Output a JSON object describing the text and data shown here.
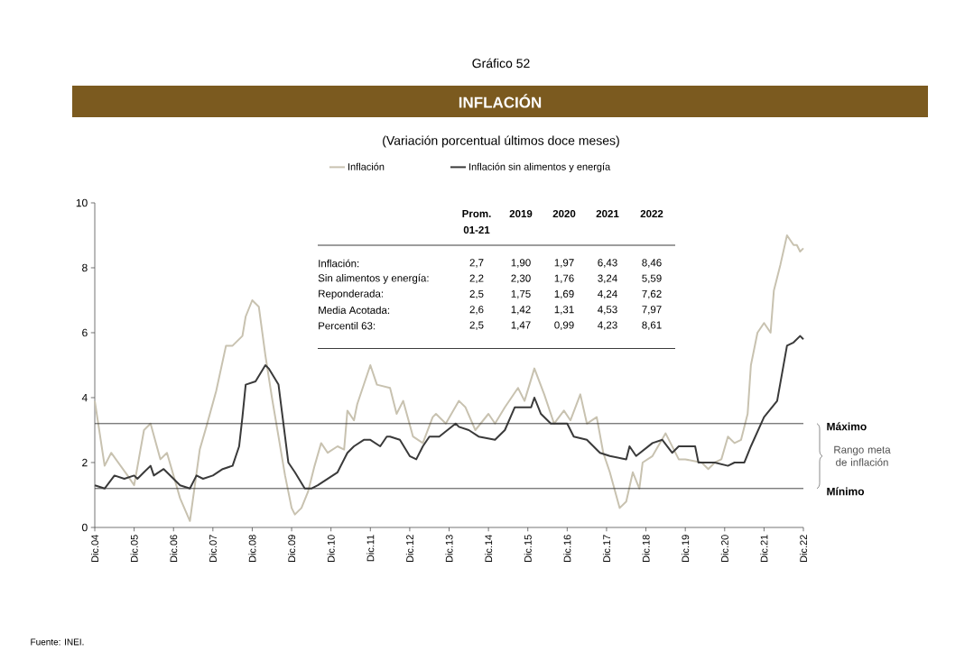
{
  "chart_data": {
    "type": "line",
    "title": "INFLACIÓN",
    "subtitle": "(Variación porcentual últimos doce meses)",
    "annotations": [
      "Gráfico 52",
      "Fuente: INEI.",
      "Rango meta de inflación",
      "Prom.",
      "2019",
      "2020",
      "2021",
      "2022",
      "01-21",
      "Inflación:",
      "2,7",
      "1,90",
      "1,97",
      "6,43",
      "8,46",
      "Sin alimentos y energía:",
      "2,2",
      "2,30",
      "1,76",
      "3,24",
      "5,59",
      "Reponderada:",
      "2,5",
      "1,75",
      "1,69",
      "4,24",
      "7,62",
      "Media Acotada:",
      "2,6",
      "1,42",
      "1,31",
      "4,53",
      "7,97",
      "Percentil 63:",
      "2,5",
      "1,47",
      "0,99",
      "4,23",
      "8,61"
    ],
    "legend": "top",
    "marker": "none",
    "line_style": "solid",
    "grid": false,
    "xlim": [
      "2004-12",
      "2022-12"
    ],
    "xticks": [
      {
        "value": "2004-12",
        "label": "Dic.04"
      },
      {
        "value": "2005-12",
        "label": "Dic.05"
      },
      {
        "value": "2006-12",
        "label": "Dic.06"
      },
      {
        "value": "2007-12",
        "label": "Dic.07"
      },
      {
        "value": "2008-12",
        "label": "Dic.08"
      },
      {
        "value": "2009-12",
        "label": "Dic.09"
      },
      {
        "value": "2010-12",
        "label": "Dic.10"
      },
      {
        "value": "2011-12",
        "label": "Dic.11"
      },
      {
        "value": "2012-12",
        "label": "Dic.12"
      },
      {
        "value": "2013-12",
        "label": "Dic.13"
      },
      {
        "value": "2014-12",
        "label": "Dic.14"
      },
      {
        "value": "2015-12",
        "label": "Dic.15"
      },
      {
        "value": "2016-12",
        "label": "Dic.16"
      },
      {
        "value": "2017-12",
        "label": "Dic.17"
      },
      {
        "value": "2018-12",
        "label": "Dic.18"
      },
      {
        "value": "2019-12",
        "label": "Dic.19"
      },
      {
        "value": "2020-12",
        "label": "Dic.20"
      },
      {
        "value": "2021-12",
        "label": "Dic.21"
      },
      {
        "value": "2022-12",
        "label": "Dic.22"
      }
    ],
    "ylim": [
      0,
      10
    ],
    "yticks": [
      0,
      2,
      4,
      6,
      8,
      10
    ],
    "ref_lines": [
      {
        "axis": "y",
        "value": 3.2,
        "label": "Máximo",
        "color": "#333333"
      },
      {
        "axis": "y",
        "value": 1.2,
        "label": "Mínimo",
        "color": "#333333"
      }
    ],
    "series": [
      {
        "name": "Inflación",
        "color": "#c8c2b0",
        "x": [
          "2004-12",
          "2005-03",
          "2005-05",
          "2005-10",
          "2005-12",
          "2006-03",
          "2006-05",
          "2006-08",
          "2006-10",
          "2006-12",
          "2007-02",
          "2007-05",
          "2007-08",
          "2007-10",
          "2008-01",
          "2008-04",
          "2008-06",
          "2008-09",
          "2008-10",
          "2008-12",
          "2009-02",
          "2009-04",
          "2009-06",
          "2009-08",
          "2009-10",
          "2009-12",
          "2010-01",
          "2010-03",
          "2010-05",
          "2010-07",
          "2010-09",
          "2010-11",
          "2011-02",
          "2011-04",
          "2011-05",
          "2011-07",
          "2011-08",
          "2011-12",
          "2012-02",
          "2012-06",
          "2012-08",
          "2012-10",
          "2013-01",
          "2013-04",
          "2013-07",
          "2013-08",
          "2013-11",
          "2014-03",
          "2014-05",
          "2014-08",
          "2014-12",
          "2015-02",
          "2015-05",
          "2015-09",
          "2015-11",
          "2016-02",
          "2016-05",
          "2016-08",
          "2016-11",
          "2017-01",
          "2017-04",
          "2017-06",
          "2017-09",
          "2017-11",
          "2018-01",
          "2018-04",
          "2018-06",
          "2018-08",
          "2018-10",
          "2018-11",
          "2019-02",
          "2019-06",
          "2019-10",
          "2019-12",
          "2020-05",
          "2020-07",
          "2020-09",
          "2020-11",
          "2021-01",
          "2021-03",
          "2021-05",
          "2021-07",
          "2021-08",
          "2021-10",
          "2021-12",
          "2022-02",
          "2022-03",
          "2022-05",
          "2022-07",
          "2022-09",
          "2022-10",
          "2022-11",
          "2022-12"
        ],
        "values": [
          3.9,
          1.9,
          2.3,
          1.6,
          1.3,
          3.0,
          3.2,
          2.1,
          2.3,
          1.6,
          0.9,
          0.2,
          2.4,
          3.1,
          4.2,
          5.6,
          5.6,
          5.9,
          6.5,
          7.0,
          6.8,
          5.3,
          4.0,
          2.8,
          1.6,
          0.6,
          0.4,
          0.6,
          1.1,
          1.9,
          2.6,
          2.3,
          2.5,
          2.4,
          3.6,
          3.3,
          3.8,
          5.0,
          4.4,
          4.3,
          3.5,
          3.9,
          2.8,
          2.6,
          3.4,
          3.5,
          3.2,
          3.9,
          3.7,
          3.0,
          3.5,
          3.2,
          3.7,
          4.3,
          3.9,
          4.9,
          4.1,
          3.2,
          3.6,
          3.3,
          4.1,
          3.2,
          3.4,
          2.3,
          1.7,
          0.6,
          0.8,
          1.7,
          1.2,
          2.0,
          2.2,
          2.9,
          2.1,
          2.1,
          2.0,
          1.8,
          2.0,
          2.1,
          2.8,
          2.6,
          2.7,
          3.5,
          5.0,
          6.0,
          6.3,
          6.0,
          7.3,
          8.1,
          9.0,
          8.7,
          8.7,
          8.5,
          8.6
        ]
      },
      {
        "name": "Inflación sin alimentos y energía",
        "color": "#3a3a3a",
        "x": [
          "2004-12",
          "2005-03",
          "2005-06",
          "2005-09",
          "2005-12",
          "2006-01",
          "2006-03",
          "2006-05",
          "2006-06",
          "2006-09",
          "2006-12",
          "2007-02",
          "2007-05",
          "2007-07",
          "2007-09",
          "2007-12",
          "2008-03",
          "2008-06",
          "2008-08",
          "2008-09",
          "2008-10",
          "2009-01",
          "2009-04",
          "2009-05",
          "2009-08",
          "2009-09",
          "2009-11",
          "2010-01",
          "2010-04",
          "2010-06",
          "2010-08",
          "2010-11",
          "2011-02",
          "2011-05",
          "2011-07",
          "2011-10",
          "2011-12",
          "2012-03",
          "2012-05",
          "2012-06",
          "2012-09",
          "2012-12",
          "2013-02",
          "2013-04",
          "2013-06",
          "2013-09",
          "2014-02",
          "2014-03",
          "2014-06",
          "2014-09",
          "2015-02",
          "2015-05",
          "2015-08",
          "2016-01",
          "2016-02",
          "2016-04",
          "2016-07",
          "2016-12",
          "2017-02",
          "2017-06",
          "2017-10",
          "2018-01",
          "2018-06",
          "2018-07",
          "2018-09",
          "2019-02",
          "2019-05",
          "2019-08",
          "2019-10",
          "2020-03",
          "2020-04",
          "2020-09",
          "2021-01",
          "2021-03",
          "2021-06",
          "2021-08",
          "2021-12",
          "2022-04",
          "2022-07",
          "2022-09",
          "2022-11",
          "2022-12"
        ],
        "values": [
          1.3,
          1.2,
          1.6,
          1.5,
          1.6,
          1.5,
          1.7,
          1.9,
          1.6,
          1.8,
          1.5,
          1.3,
          1.2,
          1.6,
          1.5,
          1.6,
          1.8,
          1.9,
          2.5,
          3.4,
          4.4,
          4.5,
          5.0,
          4.9,
          4.4,
          3.6,
          2.0,
          1.7,
          1.2,
          1.2,
          1.3,
          1.5,
          1.7,
          2.3,
          2.5,
          2.7,
          2.7,
          2.5,
          2.8,
          2.8,
          2.7,
          2.2,
          2.1,
          2.5,
          2.8,
          2.8,
          3.2,
          3.1,
          3.0,
          2.8,
          2.7,
          3.0,
          3.7,
          3.7,
          4.0,
          3.5,
          3.2,
          3.2,
          2.8,
          2.7,
          2.3,
          2.2,
          2.1,
          2.5,
          2.2,
          2.6,
          2.7,
          2.3,
          2.5,
          2.5,
          2.0,
          2.0,
          1.9,
          2.0,
          2.0,
          2.5,
          3.4,
          3.9,
          5.6,
          5.7,
          5.9,
          5.8
        ]
      }
    ]
  }
}
